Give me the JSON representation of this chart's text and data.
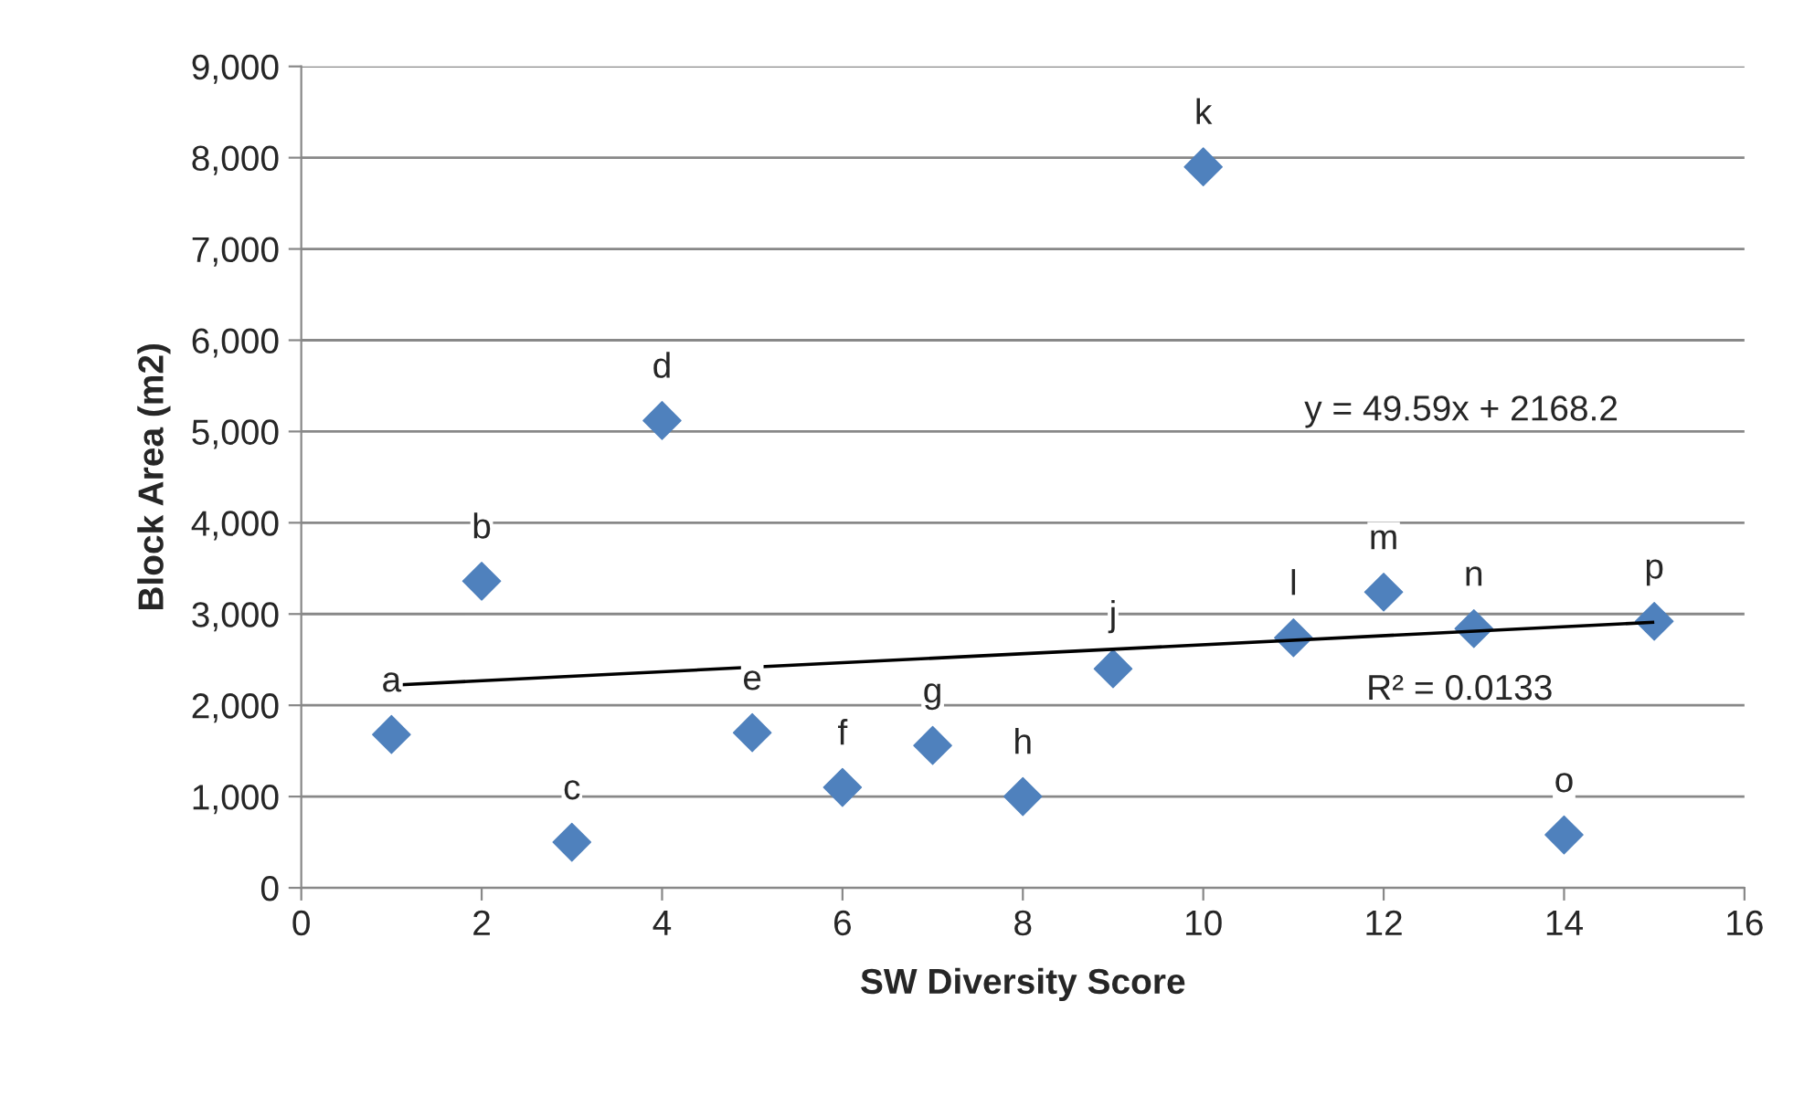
{
  "chart_data": {
    "type": "scatter",
    "xlabel": "SW Diversity Score",
    "ylabel": "Block Area (m2)",
    "x": [
      1,
      2,
      3,
      4,
      5,
      6,
      7,
      8,
      9,
      10,
      11,
      12,
      13,
      14,
      15
    ],
    "series": [
      {
        "color": "#4f81bd",
        "marker": "diamond",
        "values": [
          1680,
          3360,
          500,
          5120,
          1700,
          1100,
          1560,
          1000,
          2400,
          7900,
          2740,
          3240,
          2840,
          580,
          2920
        ]
      },
      {
        "type": "line",
        "color": "#000000",
        "x": [
          1,
          15
        ],
        "values": [
          2220,
          2910
        ]
      }
    ],
    "annotations": [
      {
        "text": "a",
        "x": 1,
        "y": 1680
      },
      {
        "text": "b",
        "x": 2,
        "y": 3360
      },
      {
        "text": "c",
        "x": 3,
        "y": 500
      },
      {
        "text": "d",
        "x": 4,
        "y": 5120
      },
      {
        "text": "e",
        "x": 5,
        "y": 1700
      },
      {
        "text": "f",
        "x": 6,
        "y": 1100
      },
      {
        "text": "g",
        "x": 7,
        "y": 1560
      },
      {
        "text": "h",
        "x": 8,
        "y": 1000
      },
      {
        "text": "j",
        "x": 9,
        "y": 2400
      },
      {
        "text": "k",
        "x": 10,
        "y": 7900
      },
      {
        "text": "l",
        "x": 11,
        "y": 2740
      },
      {
        "text": "m",
        "x": 12,
        "y": 3240
      },
      {
        "text": "n",
        "x": 13,
        "y": 2840
      },
      {
        "text": "o",
        "x": 14,
        "y": 580
      },
      {
        "text": "p",
        "x": 15,
        "y": 2920
      },
      "y = 49.59x + 2168.2",
      "R² = 0.0133"
    ],
    "xlim": [
      0,
      16
    ],
    "xticks": [
      0,
      2,
      4,
      6,
      8,
      10,
      12,
      14,
      16
    ],
    "ylim": [
      0,
      9000
    ],
    "yticks": [
      {
        "value": 0,
        "label": "0"
      },
      {
        "value": 1000,
        "label": "1,000"
      },
      {
        "value": 2000,
        "label": "2,000"
      },
      {
        "value": 3000,
        "label": "3,000"
      },
      {
        "value": 4000,
        "label": "4,000"
      },
      {
        "value": 5000,
        "label": "5,000"
      },
      {
        "value": 6000,
        "label": "6,000"
      },
      {
        "value": 7000,
        "label": "7,000"
      },
      {
        "value": 8000,
        "label": "8,000"
      },
      {
        "value": 9000,
        "label": "9,000"
      }
    ],
    "grid": "y",
    "legend": false
  }
}
